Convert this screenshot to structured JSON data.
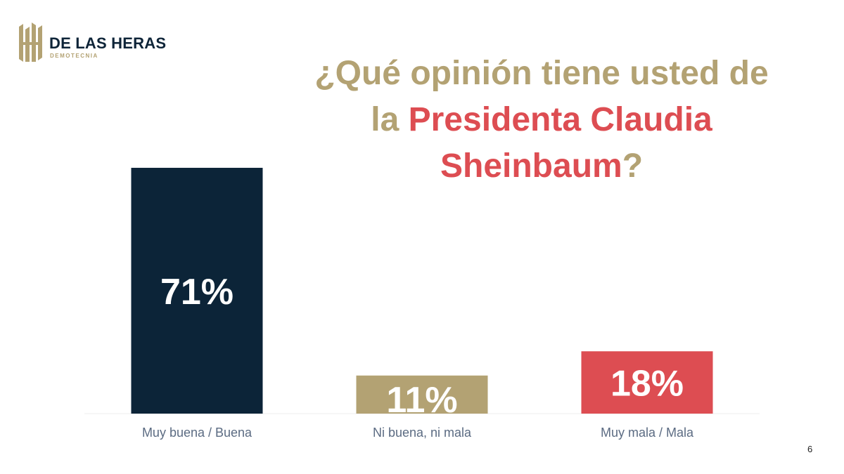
{
  "logo": {
    "name": "DE LAS HERAS",
    "sub": "DEMOTECNIA"
  },
  "title": {
    "part1": "¿Qué opinión tiene usted de la ",
    "highlight": "Presidenta Claudia Sheinbaum",
    "part2": "?"
  },
  "colors": {
    "gold": "#b3a273",
    "navy": "#0c2438",
    "red": "#dd4d52",
    "label": "#5b6b82"
  },
  "chart_data": {
    "type": "bar",
    "categories": [
      "Muy buena / Buena",
      "Ni buena, ni mala",
      "Muy mala / Mala"
    ],
    "values": [
      71,
      11,
      18
    ],
    "data_labels": [
      "71%",
      "11%",
      "18%"
    ],
    "bar_colors": [
      "#0c2438",
      "#b3a273",
      "#dd4d52"
    ],
    "ylim": [
      0,
      100
    ],
    "grid": false,
    "legend": "none"
  },
  "page_number": "6"
}
